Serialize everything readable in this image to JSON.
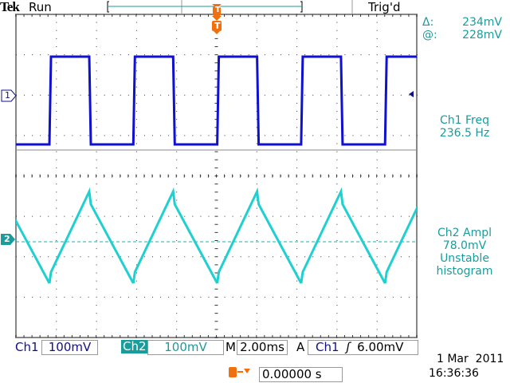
{
  "header": {
    "brand": "Tek",
    "status": "Run",
    "trigger_status": "Trig'd"
  },
  "cursor_readout": {
    "delta_label": "Δ:",
    "delta_value": "234mV",
    "at_label": "@:",
    "at_value": "228mV"
  },
  "measurements": [
    {
      "line1": "Ch1 Freq",
      "line2": "236.5 Hz"
    },
    {
      "line1": "Ch2 Ampl",
      "line2": "78.0mV",
      "line3": "Unstable",
      "line4": "histogram"
    }
  ],
  "markers": {
    "ch1": "1",
    "ch2": "2",
    "trigger": "T"
  },
  "footer": {
    "ch1_label": "Ch1",
    "ch1_scale": "100mV",
    "ch2_label": "Ch2",
    "ch2_scale": "100mV",
    "timebase_label": "M",
    "timebase": "2.00ms",
    "trigger_mode": "A",
    "trigger_source": "Ch1",
    "trigger_slope": "rising",
    "trigger_level": "6.00mV",
    "trigger_position": "0.00000 s",
    "date": "1 Mar  2011",
    "time": "16:36:36"
  },
  "colors": {
    "ch1": "#1010d0",
    "ch2": "#20d0d0",
    "trigger": "#f07010",
    "text_teal": "#1a9c9c",
    "text_navy": "#10108a"
  }
}
